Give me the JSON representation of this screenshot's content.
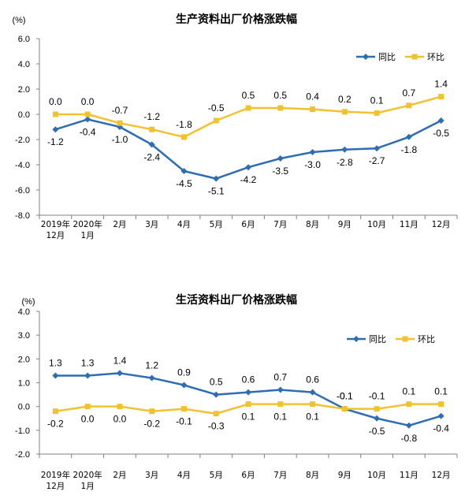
{
  "chart_data": [
    {
      "type": "line",
      "title": "生产资料出厂价格涨跌幅",
      "unit": "(%)",
      "ylim": [
        -8.0,
        6.0
      ],
      "yticks": [
        "6.0",
        "4.0",
        "2.0",
        "0.0",
        "-2.0",
        "-4.0",
        "-6.0",
        "-8.0"
      ],
      "categories": [
        [
          "2019年",
          "12月"
        ],
        [
          "2020年",
          "1月"
        ],
        [
          "2月"
        ],
        [
          "3月"
        ],
        [
          "4月"
        ],
        [
          "5月"
        ],
        [
          "6月"
        ],
        [
          "7月"
        ],
        [
          "8月"
        ],
        [
          "9月"
        ],
        [
          "10月"
        ],
        [
          "11月"
        ],
        [
          "12月"
        ]
      ],
      "legend_position": "top-right",
      "series": [
        {
          "name": "同比",
          "color": "#2E6DB4",
          "marker": "diamond",
          "values": [
            -1.2,
            -0.4,
            -1.0,
            -2.4,
            -4.5,
            -5.1,
            -4.2,
            -3.5,
            -3.0,
            -2.8,
            -2.7,
            -1.8,
            -0.5
          ],
          "labels": [
            "-1.2",
            "-0.4",
            "-1.0",
            "-2.4",
            "-4.5",
            "-5.1",
            "-4.2",
            "-3.5",
            "-3.0",
            "-2.8",
            "-2.7",
            "-1.8",
            "-0.5"
          ],
          "label_pos": [
            "below",
            "below",
            "below",
            "below",
            "below",
            "below",
            "below",
            "below",
            "below",
            "below",
            "below",
            "below",
            "below"
          ]
        },
        {
          "name": "环比",
          "color": "#F2C12E",
          "marker": "square",
          "values": [
            0.0,
            0.0,
            -0.7,
            -1.2,
            -1.8,
            -0.5,
            0.5,
            0.5,
            0.4,
            0.2,
            0.1,
            0.7,
            1.4
          ],
          "labels": [
            "0.0",
            "0.0",
            "-0.7",
            "-1.2",
            "-1.8",
            "-0.5",
            "0.5",
            "0.5",
            "0.4",
            "0.2",
            "0.1",
            "0.7",
            "1.4"
          ],
          "label_pos": [
            "above",
            "above",
            "above",
            "above",
            "above",
            "above",
            "above",
            "above",
            "above",
            "above",
            "above",
            "above",
            "above"
          ]
        }
      ]
    },
    {
      "type": "line",
      "title": "生活资料出厂价格涨跌幅",
      "unit": "(%)",
      "ylim": [
        -2.0,
        4.0
      ],
      "yticks": [
        "4.0",
        "3.0",
        "2.0",
        "1.0",
        "0.0",
        "-1.0",
        "-2.0"
      ],
      "categories": [
        [
          "2019年",
          "12月"
        ],
        [
          "2020年",
          "1月"
        ],
        [
          "2月"
        ],
        [
          "3月"
        ],
        [
          "4月"
        ],
        [
          "5月"
        ],
        [
          "6月"
        ],
        [
          "7月"
        ],
        [
          "8月"
        ],
        [
          "9月"
        ],
        [
          "10月"
        ],
        [
          "11月"
        ],
        [
          "12月"
        ]
      ],
      "legend_position": "top-right",
      "series": [
        {
          "name": "同比",
          "color": "#2E6DB4",
          "marker": "diamond",
          "values": [
            1.3,
            1.3,
            1.4,
            1.2,
            0.9,
            0.5,
            0.6,
            0.7,
            0.6,
            -0.1,
            -0.5,
            -0.8,
            -0.4
          ],
          "labels": [
            "1.3",
            "1.3",
            "1.4",
            "1.2",
            "0.9",
            "0.5",
            "0.6",
            "0.7",
            "0.6",
            "-0.1",
            "-0.5",
            "-0.8",
            "-0.4"
          ],
          "label_pos": [
            "above",
            "above",
            "above",
            "above",
            "above",
            "above",
            "above",
            "above",
            "above",
            "above",
            "below",
            "below",
            "below"
          ]
        },
        {
          "name": "环比",
          "color": "#F2C12E",
          "marker": "square",
          "values": [
            -0.2,
            0.0,
            0.0,
            -0.2,
            -0.1,
            -0.3,
            0.1,
            0.1,
            0.1,
            -0.1,
            -0.1,
            0.1,
            0.1
          ],
          "labels": [
            "-0.2",
            "0.0",
            "0.0",
            "-0.2",
            "-0.1",
            "-0.3",
            "0.1",
            "0.1",
            "0.1",
            "-0.1",
            "-0.1",
            "0.1",
            "0.1"
          ],
          "label_pos": [
            "below",
            "below",
            "below",
            "below",
            "below",
            "below",
            "below",
            "below",
            "below",
            "above",
            "above",
            "above",
            "above"
          ]
        }
      ]
    }
  ]
}
